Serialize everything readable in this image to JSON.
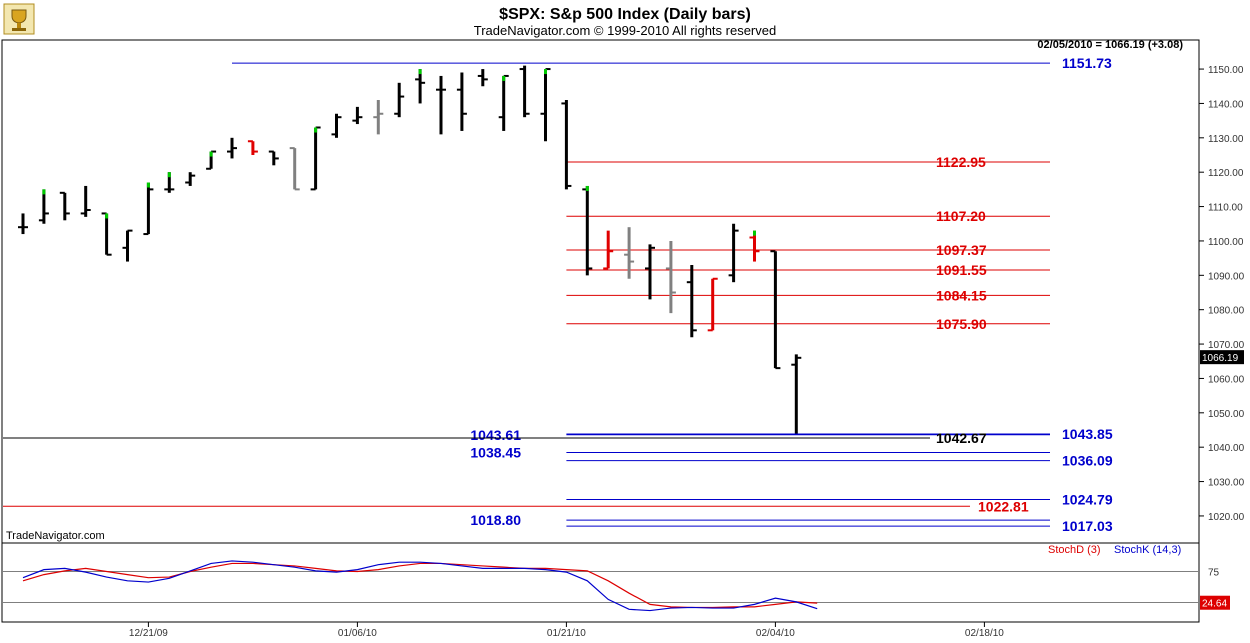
{
  "header": {
    "title": "$SPX:  S&p 500 Index  (Daily bars)",
    "subtitle": "TradeNavigator.com © 1999-2010 All rights reserved",
    "readout": "02/05/2010 = 1066.19 (+3.08)",
    "watermark": "TradeNavigator.com",
    "logo_icon": "trophy-icon"
  },
  "colors": {
    "up": "#000000",
    "down_red": "#e00000",
    "gray": "#808080",
    "green": "#00cc00",
    "blue": "#0000cc",
    "red": "#dd0000"
  },
  "chart_data": [
    {
      "type": "ohlc",
      "title": "$SPX:  S&p 500 Index  (Daily bars)",
      "ylim": [
        1013,
        1157
      ],
      "y_ticks": [
        "1020.00",
        "1030.00",
        "1040.00",
        "1050.00",
        "1060.00",
        "1070.00",
        "1080.00",
        "1090.00",
        "1100.00",
        "1110.00",
        "1120.00",
        "1130.00",
        "1140.00",
        "1150.00"
      ],
      "x_ticks": [
        {
          "label": "12/21/09",
          "index": 6
        },
        {
          "label": "01/06/10",
          "index": 16
        },
        {
          "label": "01/21/10",
          "index": 26
        },
        {
          "label": "02/04/10",
          "index": 36
        },
        {
          "label": "02/18/10",
          "index": 46
        }
      ],
      "last_price": "1066.19",
      "bars": [
        {
          "o": 1104,
          "h": 1108,
          "l": 1102,
          "c": 1104,
          "color": "black",
          "tip": ""
        },
        {
          "o": 1106,
          "h": 1115,
          "l": 1105,
          "c": 1108,
          "color": "black",
          "tip": "green"
        },
        {
          "o": 1114,
          "h": 1114,
          "l": 1106,
          "c": 1108,
          "color": "black",
          "tip": ""
        },
        {
          "o": 1108,
          "h": 1116,
          "l": 1107,
          "c": 1109,
          "color": "black",
          "tip": ""
        },
        {
          "o": 1108,
          "h": 1108,
          "l": 1096,
          "c": 1096,
          "color": "black",
          "tip": "green"
        },
        {
          "o": 1098,
          "h": 1103,
          "l": 1094,
          "c": 1103,
          "color": "black",
          "tip": ""
        },
        {
          "o": 1102,
          "h": 1117,
          "l": 1102,
          "c": 1115,
          "color": "black",
          "tip": "green"
        },
        {
          "o": 1115,
          "h": 1120,
          "l": 1114,
          "c": 1115,
          "color": "black",
          "tip": "green"
        },
        {
          "o": 1117,
          "h": 1120,
          "l": 1116,
          "c": 1119,
          "color": "black",
          "tip": ""
        },
        {
          "o": 1121,
          "h": 1126,
          "l": 1121,
          "c": 1126,
          "color": "black",
          "tip": "green"
        },
        {
          "o": 1126,
          "h": 1130,
          "l": 1124,
          "c": 1127,
          "color": "black",
          "tip": ""
        },
        {
          "o": 1129,
          "h": 1129,
          "l": 1125,
          "c": 1126,
          "color": "red",
          "tip": ""
        },
        {
          "o": 1126,
          "h": 1126,
          "l": 1122,
          "c": 1124,
          "color": "black",
          "tip": ""
        },
        {
          "o": 1127,
          "h": 1127,
          "l": 1115,
          "c": 1115,
          "color": "gray",
          "tip": ""
        },
        {
          "o": 1115,
          "h": 1133,
          "l": 1115,
          "c": 1133,
          "color": "black",
          "tip": "green"
        },
        {
          "o": 1131,
          "h": 1137,
          "l": 1130,
          "c": 1136,
          "color": "black",
          "tip": ""
        },
        {
          "o": 1135,
          "h": 1139,
          "l": 1134,
          "c": 1136,
          "color": "black",
          "tip": ""
        },
        {
          "o": 1136,
          "h": 1141,
          "l": 1131,
          "c": 1137,
          "color": "gray",
          "tip": ""
        },
        {
          "o": 1137,
          "h": 1146,
          "l": 1136,
          "c": 1142,
          "color": "black",
          "tip": ""
        },
        {
          "o": 1147,
          "h": 1150,
          "l": 1140,
          "c": 1146,
          "color": "black",
          "tip": "green"
        },
        {
          "o": 1144,
          "h": 1148,
          "l": 1131,
          "c": 1144,
          "color": "black",
          "tip": ""
        },
        {
          "o": 1144,
          "h": 1149,
          "l": 1132,
          "c": 1137,
          "color": "black",
          "tip": ""
        },
        {
          "o": 1148,
          "h": 1150,
          "l": 1145,
          "c": 1147,
          "color": "black",
          "tip": ""
        },
        {
          "o": 1136,
          "h": 1148,
          "l": 1132,
          "c": 1148,
          "color": "black",
          "tip": "green"
        },
        {
          "o": 1150,
          "h": 1151,
          "l": 1136,
          "c": 1137,
          "color": "black",
          "tip": ""
        },
        {
          "o": 1137,
          "h": 1150,
          "l": 1129,
          "c": 1150,
          "color": "black",
          "tip": "green"
        },
        {
          "o": 1140,
          "h": 1141,
          "l": 1115,
          "c": 1116,
          "color": "black",
          "tip": ""
        },
        {
          "o": 1115,
          "h": 1116,
          "l": 1090,
          "c": 1092,
          "color": "black",
          "tip": "green"
        },
        {
          "o": 1092,
          "h": 1103,
          "l": 1092,
          "c": 1097,
          "color": "red",
          "tip": ""
        },
        {
          "o": 1096,
          "h": 1104,
          "l": 1089,
          "c": 1094,
          "color": "gray",
          "tip": ""
        },
        {
          "o": 1092,
          "h": 1099,
          "l": 1083,
          "c": 1098,
          "color": "black",
          "tip": ""
        },
        {
          "o": 1092,
          "h": 1100,
          "l": 1079,
          "c": 1085,
          "color": "gray",
          "tip": ""
        },
        {
          "o": 1088,
          "h": 1093,
          "l": 1072,
          "c": 1074,
          "color": "black",
          "tip": ""
        },
        {
          "o": 1074,
          "h": 1089,
          "l": 1074,
          "c": 1089,
          "color": "red",
          "tip": ""
        },
        {
          "o": 1090,
          "h": 1105,
          "l": 1088,
          "c": 1103,
          "color": "black",
          "tip": ""
        },
        {
          "o": 1101,
          "h": 1103,
          "l": 1094,
          "c": 1097,
          "color": "red",
          "tip": "green"
        },
        {
          "o": 1097,
          "h": 1097,
          "l": 1063,
          "c": 1063,
          "color": "black",
          "tip": ""
        },
        {
          "o": 1064,
          "h": 1067,
          "l": 1044,
          "c": 1066,
          "color": "black",
          "tip": ""
        }
      ],
      "levels": [
        {
          "value": 1151.73,
          "label": "1151.73",
          "color": "blue",
          "start_index": 10,
          "label_side": "right"
        },
        {
          "value": 1122.95,
          "label": "1122.95",
          "color": "red",
          "start_index": 26,
          "label_side": "mid"
        },
        {
          "value": 1107.2,
          "label": "1107.20",
          "color": "red",
          "start_index": 26,
          "label_side": "mid"
        },
        {
          "value": 1097.37,
          "label": "1097.37",
          "color": "red",
          "start_index": 26,
          "label_side": "mid"
        },
        {
          "value": 1091.55,
          "label": "1091.55",
          "color": "red",
          "start_index": 26,
          "label_side": "mid"
        },
        {
          "value": 1084.15,
          "label": "1084.15",
          "color": "red",
          "start_index": 26,
          "label_side": "mid"
        },
        {
          "value": 1075.9,
          "label": "1075.90",
          "color": "red",
          "start_index": 26,
          "label_side": "mid"
        },
        {
          "value": 1043.85,
          "label": "1043.85",
          "color": "blue",
          "start_index": 26,
          "label_side": "right"
        },
        {
          "value": 1043.61,
          "label": "1043.61",
          "color": "blue",
          "start_index": 26,
          "label_side": "left"
        },
        {
          "value": 1042.67,
          "label": "1042.67",
          "color": "black",
          "start_index": -1,
          "label_side": "mid"
        },
        {
          "value": 1038.45,
          "label": "1038.45",
          "color": "blue",
          "start_index": 26,
          "label_side": "left"
        },
        {
          "value": 1036.09,
          "label": "1036.09",
          "color": "blue",
          "start_index": 26,
          "label_side": "right"
        },
        {
          "value": 1024.79,
          "label": "1024.79",
          "color": "blue",
          "start_index": 26,
          "label_side": "right"
        },
        {
          "value": 1022.81,
          "label": "1022.81",
          "color": "red",
          "start_index": -1,
          "label_side": "mid2"
        },
        {
          "value": 1018.8,
          "label": "1018.80",
          "color": "blue",
          "start_index": 26,
          "label_side": "left"
        },
        {
          "value": 1017.03,
          "label": "1017.03",
          "color": "blue",
          "start_index": 26,
          "label_side": "right"
        }
      ]
    },
    {
      "type": "line",
      "ylim": [
        0,
        100
      ],
      "y_ticks": [
        "75",
        "25"
      ],
      "series": [
        {
          "name": "StochD (3)",
          "color": "red",
          "values": [
            60,
            70,
            76,
            80,
            75,
            70,
            65,
            66,
            75,
            82,
            88,
            88,
            86,
            84,
            80,
            76,
            75,
            78,
            84,
            88,
            88,
            86,
            84,
            82,
            80,
            80,
            78,
            76,
            60,
            40,
            22,
            18,
            17,
            17,
            18,
            18,
            22,
            26,
            24
          ]
        },
        {
          "name": "StochK (14,3)",
          "color": "blue",
          "values": [
            65,
            78,
            80,
            74,
            66,
            60,
            58,
            64,
            76,
            88,
            92,
            90,
            86,
            82,
            76,
            74,
            78,
            86,
            90,
            90,
            88,
            84,
            80,
            80,
            80,
            78,
            74,
            60,
            30,
            14,
            12,
            16,
            17,
            16,
            16,
            22,
            32,
            26,
            15
          ]
        }
      ],
      "last_value": "24.64"
    }
  ]
}
